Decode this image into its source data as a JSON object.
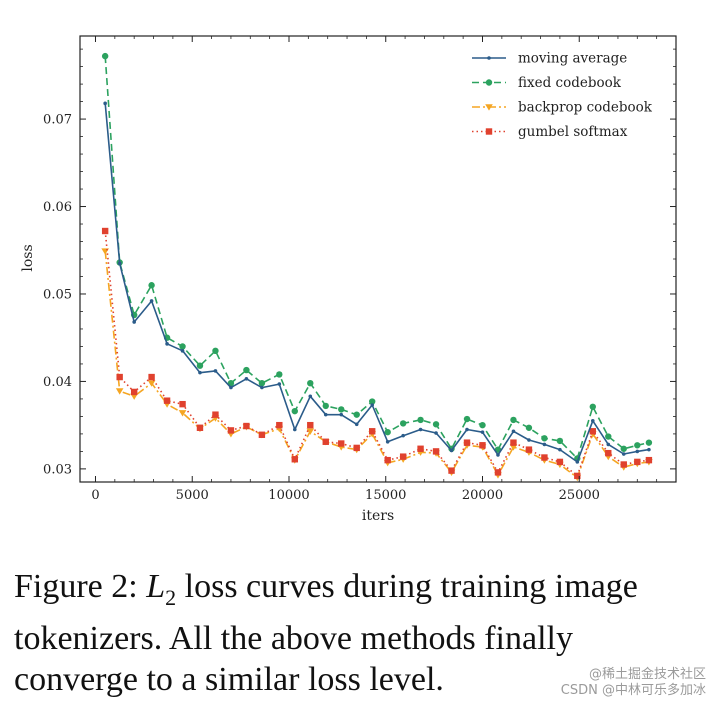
{
  "chart_data": {
    "type": "line",
    "xlabel": "iters",
    "ylabel": "loss",
    "xlim": [
      -800,
      30000
    ],
    "ylim": [
      0.0285,
      0.0795
    ],
    "xticks": [
      0,
      5000,
      10000,
      15000,
      20000,
      25000
    ],
    "yticks": [
      0.03,
      0.04,
      0.05,
      0.06,
      0.07
    ],
    "grid": false,
    "legend_position": "top-right",
    "series": [
      {
        "name": "moving average",
        "color": "#2b5c8a",
        "style": "solid",
        "marker": "dot",
        "x": [
          500,
          1250,
          2000,
          2900,
          3700,
          4500,
          5400,
          6200,
          7000,
          7800,
          8600,
          9500,
          10300,
          11100,
          11900,
          12700,
          13500,
          14300,
          15100,
          15900,
          16800,
          17600,
          18400,
          19200,
          20000,
          20800,
          21600,
          22400,
          23200,
          24000,
          24900,
          25700,
          26500,
          27300,
          28000,
          28600
        ],
        "y": [
          0.0718,
          0.0535,
          0.0468,
          0.0492,
          0.0443,
          0.0435,
          0.041,
          0.0412,
          0.0393,
          0.0403,
          0.0393,
          0.0397,
          0.0345,
          0.0383,
          0.0362,
          0.0362,
          0.0351,
          0.0373,
          0.0331,
          0.0338,
          0.0345,
          0.0341,
          0.0321,
          0.0345,
          0.0342,
          0.0316,
          0.0343,
          0.0333,
          0.0328,
          0.0322,
          0.0308,
          0.0355,
          0.0328,
          0.0317,
          0.032,
          0.0322
        ]
      },
      {
        "name": "fixed codebook",
        "color": "#2ca25f",
        "style": "dashed",
        "marker": "circle",
        "x": [
          500,
          1250,
          2000,
          2900,
          3700,
          4500,
          5400,
          6200,
          7000,
          7800,
          8600,
          9500,
          10300,
          11100,
          11900,
          12700,
          13500,
          14300,
          15100,
          15900,
          16800,
          17600,
          18400,
          19200,
          20000,
          20800,
          21600,
          22400,
          23200,
          24000,
          24900,
          25700,
          26500,
          27300,
          28000,
          28600
        ],
        "y": [
          0.0772,
          0.0536,
          0.0476,
          0.051,
          0.045,
          0.044,
          0.0418,
          0.0435,
          0.0398,
          0.0413,
          0.0398,
          0.0408,
          0.0366,
          0.0398,
          0.0372,
          0.0368,
          0.0362,
          0.0377,
          0.0342,
          0.0352,
          0.0356,
          0.0351,
          0.0323,
          0.0357,
          0.035,
          0.0322,
          0.0356,
          0.0347,
          0.0335,
          0.0332,
          0.0312,
          0.0371,
          0.0337,
          0.0323,
          0.0327,
          0.033
        ]
      },
      {
        "name": "backprop codebook",
        "color": "#f5a623",
        "style": "dashdot",
        "marker": "triangle-down",
        "x": [
          500,
          1250,
          2000,
          2900,
          3700,
          4500,
          5400,
          6200,
          7000,
          7800,
          8600,
          9500,
          10300,
          11100,
          11900,
          12700,
          13500,
          14300,
          15100,
          15900,
          16800,
          17600,
          18400,
          19200,
          20000,
          20800,
          21600,
          22400,
          23200,
          24000,
          24900,
          25700,
          26500,
          27300,
          28000,
          28600
        ],
        "y": [
          0.0549,
          0.0389,
          0.0383,
          0.0398,
          0.0374,
          0.0364,
          0.0346,
          0.0358,
          0.034,
          0.0348,
          0.0339,
          0.0346,
          0.031,
          0.0343,
          0.0331,
          0.0325,
          0.0322,
          0.034,
          0.0307,
          0.0311,
          0.0319,
          0.0318,
          0.0296,
          0.0327,
          0.0325,
          0.0293,
          0.0325,
          0.0319,
          0.031,
          0.0305,
          0.029,
          0.034,
          0.0314,
          0.0302,
          0.0306,
          0.0308
        ]
      },
      {
        "name": "gumbel softmax",
        "color": "#e0412e",
        "style": "dotted",
        "marker": "square",
        "x": [
          500,
          1250,
          2000,
          2900,
          3700,
          4500,
          5400,
          6200,
          7000,
          7800,
          8600,
          9500,
          10300,
          11100,
          11900,
          12700,
          13500,
          14300,
          15100,
          15900,
          16800,
          17600,
          18400,
          19200,
          20000,
          20800,
          21600,
          22400,
          23200,
          24000,
          24900,
          25700,
          26500,
          27300,
          28000,
          28600
        ],
        "y": [
          0.0572,
          0.0405,
          0.0388,
          0.0405,
          0.0378,
          0.0374,
          0.0347,
          0.0362,
          0.0344,
          0.0349,
          0.0339,
          0.035,
          0.0311,
          0.035,
          0.0331,
          0.0329,
          0.0324,
          0.0343,
          0.031,
          0.0314,
          0.0323,
          0.032,
          0.0298,
          0.033,
          0.0327,
          0.0296,
          0.033,
          0.0322,
          0.0313,
          0.0308,
          0.0292,
          0.0343,
          0.0318,
          0.0305,
          0.0308,
          0.031
        ]
      }
    ]
  },
  "caption": {
    "prefix": "Figure 2:",
    "math_symbol": "L",
    "math_sub": "2",
    "text": " loss curves during training image tokenizers. All the above methods finally converge to a similar loss level."
  },
  "watermark": {
    "line1": "@稀土掘金技术社区",
    "line2": "CSDN @中林可乐多加冰"
  }
}
